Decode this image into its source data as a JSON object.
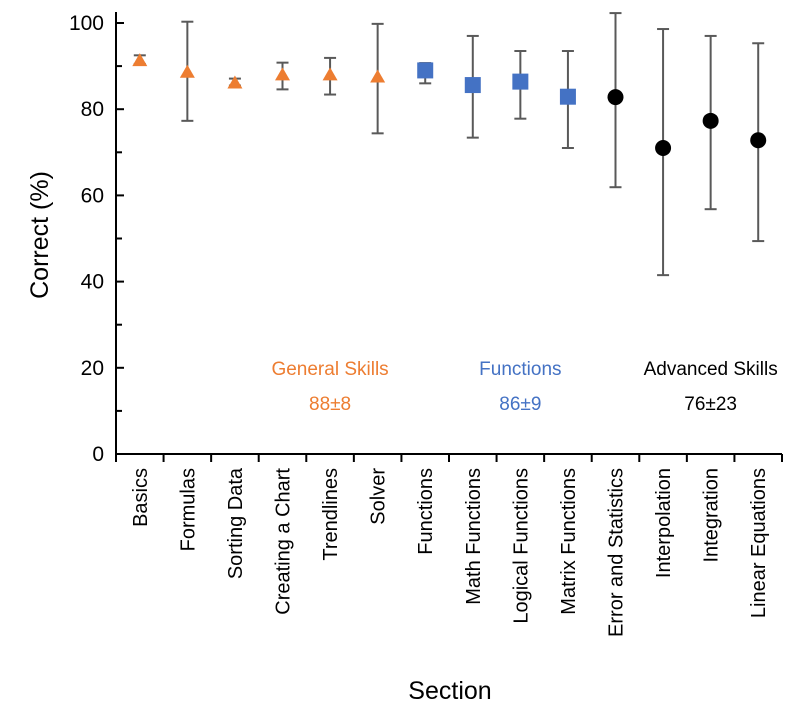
{
  "chart_data": {
    "type": "scatter",
    "xlabel": "Section",
    "ylabel": "Correct (%)",
    "ylim": [
      0,
      100
    ],
    "yticks": [
      "0",
      "20",
      "40",
      "60",
      "80",
      "100"
    ],
    "grid": false,
    "legend": "none",
    "categories": [
      "Basics",
      "Formulas",
      "Sorting Data",
      "Creating a Chart",
      "Trendlines",
      "Solver",
      "Functions",
      "Math Functions",
      "Logical Functions",
      "Matrix Functions",
      "Error and Statistics",
      "Interpolation",
      "Integration",
      "Linear Equations"
    ],
    "series": [
      {
        "group": "general",
        "marker": "triangle",
        "color": "#ED7D31",
        "points": [
          {
            "category": "Basics",
            "y": 91.5,
            "err_low": 90.5,
            "err_high": 92.5
          },
          {
            "category": "Formulas",
            "y": 88.8,
            "err_low": 77.3,
            "err_high": 100.3
          },
          {
            "category": "Sorting Data",
            "y": 86.3,
            "err_low": 85.5,
            "err_high": 87.1
          },
          {
            "category": "Creating a Chart",
            "y": 88.2,
            "err_low": 84.6,
            "err_high": 90.8
          },
          {
            "category": "Trendlines",
            "y": 88.2,
            "err_low": 83.4,
            "err_high": 91.9
          },
          {
            "category": "Solver",
            "y": 87.7,
            "err_low": 74.4,
            "err_high": 99.8
          }
        ]
      },
      {
        "group": "functions",
        "marker": "square",
        "color": "#4472C4",
        "points": [
          {
            "category": "Functions",
            "y": 89.0,
            "err_low": 86.0,
            "err_high": 90.7
          },
          {
            "category": "Math Functions",
            "y": 85.6,
            "err_low": 73.4,
            "err_high": 97.0
          },
          {
            "category": "Logical Functions",
            "y": 86.4,
            "err_low": 77.8,
            "err_high": 93.5
          },
          {
            "category": "Matrix Functions",
            "y": 82.9,
            "err_low": 71.0,
            "err_high": 93.5
          }
        ]
      },
      {
        "group": "advanced",
        "marker": "circle",
        "color": "#000000",
        "points": [
          {
            "category": "Error and Statistics",
            "y": 82.8,
            "err_low": 61.9,
            "err_high": 102.3
          },
          {
            "category": "Interpolation",
            "y": 71.0,
            "err_low": 41.5,
            "err_high": 98.6
          },
          {
            "category": "Integration",
            "y": 77.3,
            "err_low": 56.8,
            "err_high": 97.0
          },
          {
            "category": "Linear Equations",
            "y": 72.8,
            "err_low": 49.4,
            "err_high": 95.3
          }
        ]
      }
    ],
    "annotations": [
      {
        "name": "General Skills",
        "value": "88±8",
        "color": "#ED7D31",
        "category": "Trendlines"
      },
      {
        "name": "Functions",
        "value": "86±9",
        "color": "#4472C4",
        "category": "Logical Functions"
      },
      {
        "name": "Advanced Skills",
        "value": "76±23",
        "color": "#000000",
        "category": "Integration"
      }
    ]
  }
}
